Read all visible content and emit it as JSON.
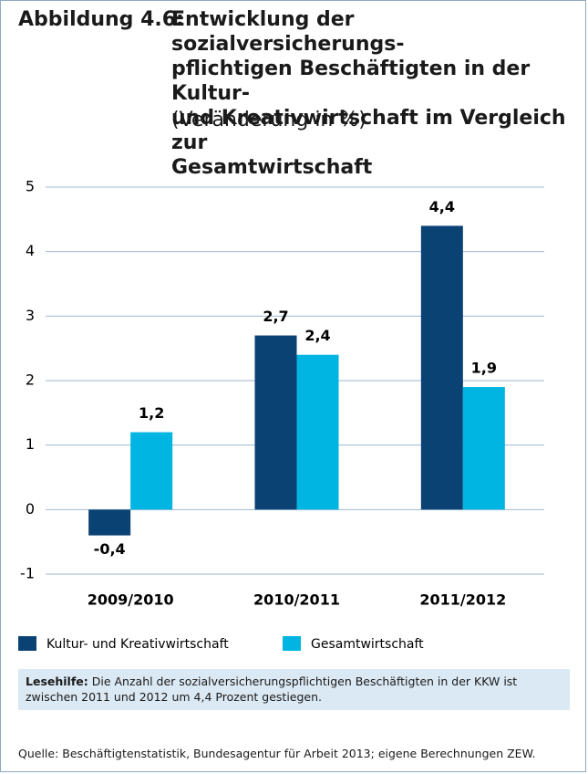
{
  "chart_data": {
    "type": "bar",
    "figure_label": "Abbildung 4.6:",
    "title_lines": [
      "Entwicklung der sozialversicherungs-",
      "pflichtigen Beschäftigten in der Kultur-",
      "und Kreativwirtschaft im Vergleich zur",
      "Gesamtwirtschaft"
    ],
    "subtitle": "(Veränderung in %)",
    "categories": [
      "2009/2010",
      "2010/2011",
      "2011/2012"
    ],
    "series": [
      {
        "name": "Kultur- und Kreativwirtschaft",
        "color": "#0b4274",
        "values": [
          -0.4,
          2.7,
          4.4
        ],
        "value_labels": [
          "-0,4",
          "2,7",
          "4,4"
        ]
      },
      {
        "name": "Gesamtwirtschaft",
        "color": "#00b5e2",
        "values": [
          1.2,
          2.4,
          1.9
        ],
        "value_labels": [
          "1,2",
          "2,4",
          "1,9"
        ]
      }
    ],
    "ylim": [
      -1,
      5
    ],
    "yticks": [
      -1,
      0,
      1,
      2,
      3,
      4,
      5
    ],
    "grid": true,
    "legend": "bottom",
    "note_label": "Lesehilfe:",
    "note": "Die Anzahl der sozialversicherungspflichtigen Beschäftigten in der KKW ist zwischen 2011 und 2012 um 4,4 Prozent gestiegen.",
    "source": "Quelle: Beschäftigtenstatistik, Bundesagentur für Arbeit 2013; eigene Berechnungen ZEW."
  }
}
